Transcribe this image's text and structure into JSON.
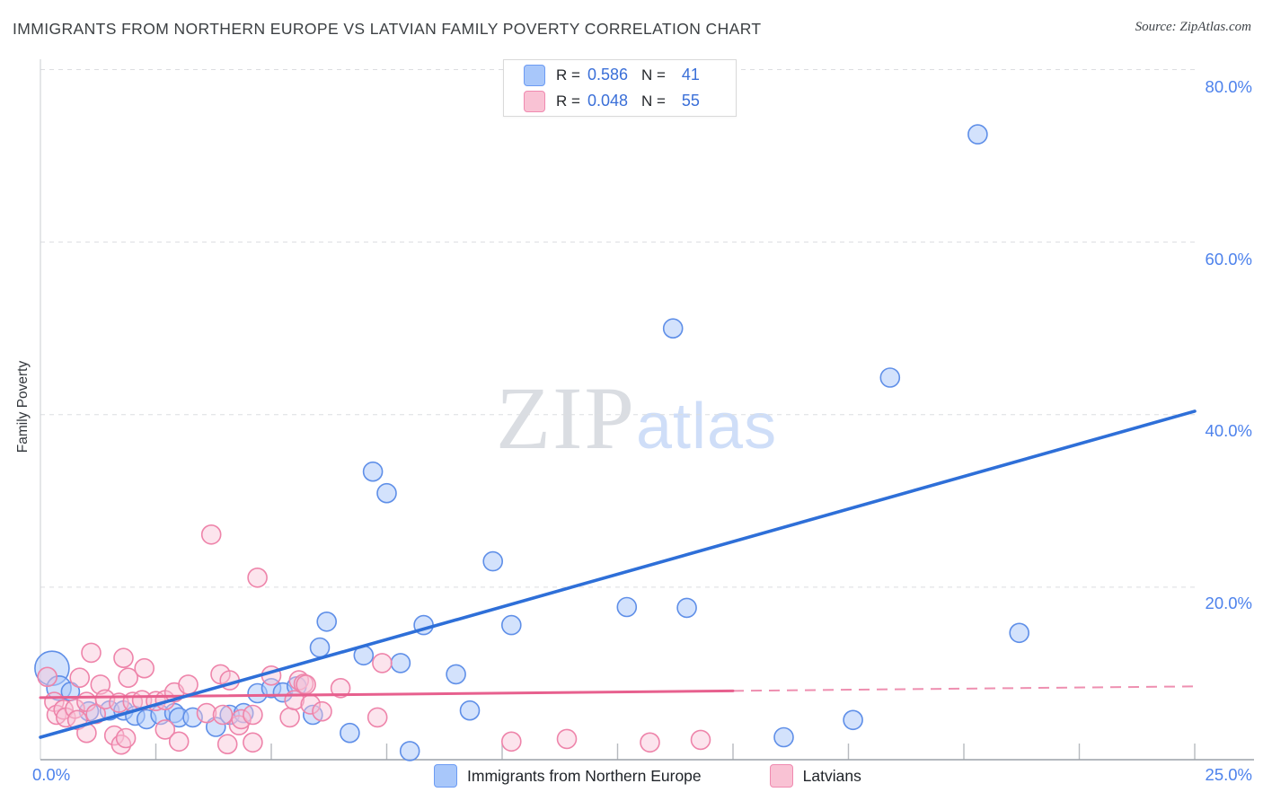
{
  "header": {
    "title": "IMMIGRANTS FROM NORTHERN EUROPE VS LATVIAN FAMILY POVERTY CORRELATION CHART",
    "source": "Source: ZipAtlas.com"
  },
  "watermark": {
    "zip": "ZIP",
    "atlas": "atlas"
  },
  "axes": {
    "y_axis_title": "Family Poverty",
    "y_labels": [
      "80.0%",
      "60.0%",
      "40.0%",
      "20.0%"
    ],
    "x_labels": [
      "0.0%",
      "25.0%"
    ]
  },
  "legend_box": {
    "rows": [
      {
        "r_label": "R =",
        "r_value": "0.586",
        "n_label": "N =",
        "n_value": "41"
      },
      {
        "r_label": "R =",
        "r_value": "0.048",
        "n_label": "N =",
        "n_value": "55"
      }
    ]
  },
  "bottom_legend": {
    "items": [
      {
        "label": "Immigrants from Northern Europe",
        "color": "#a8c7fa"
      },
      {
        "label": "Latvians",
        "color": "#f9c2d4"
      }
    ]
  },
  "colors": {
    "blue_fill": "#aecbfa",
    "blue_stroke": "#5f8fe8",
    "blue_trend": "#2e6fd8",
    "pink_fill": "#f9c4d6",
    "pink_stroke": "#ee84aa",
    "pink_trend": "#e7608e",
    "gridline": "#dcdde0",
    "axis_line": "#9ba1a8",
    "tick": "#b7babf",
    "plot_border": "#d3d5d8",
    "label_blue": "#4d82ec"
  },
  "chart_data": {
    "type": "scatter",
    "title": "Immigrants from Northern Europe vs Latvian Family Poverty",
    "xlabel": "Immigrants from Northern Europe (%)",
    "ylabel": "Family Poverty (%)",
    "xlim": [
      0,
      25
    ],
    "ylim": [
      0,
      81.2
    ],
    "y_gridlines": [
      20,
      40,
      60,
      80
    ],
    "x_minor_tick_step": 2.5,
    "grid": "dashed-horizontal",
    "legend_position": "bottom",
    "series": [
      {
        "name": "Immigrants from Northern Europe",
        "R": 0.586,
        "N": 41,
        "points": [
          [
            0.25,
            10.6,
            19
          ],
          [
            0.4,
            8.3,
            13.5
          ],
          [
            0.65,
            7.9,
            10
          ],
          [
            1.05,
            5.6
          ],
          [
            1.5,
            5.7
          ],
          [
            1.8,
            5.7
          ],
          [
            2.05,
            5.1
          ],
          [
            2.3,
            4.7
          ],
          [
            2.6,
            5.2
          ],
          [
            2.9,
            5.4
          ],
          [
            3.0,
            4.9
          ],
          [
            3.3,
            4.9
          ],
          [
            3.8,
            3.8
          ],
          [
            4.1,
            5.2
          ],
          [
            4.4,
            5.4
          ],
          [
            4.7,
            7.7
          ],
          [
            5.0,
            8.3
          ],
          [
            5.25,
            7.8
          ],
          [
            5.55,
            8.5
          ],
          [
            5.9,
            5.2
          ],
          [
            6.05,
            13.0
          ],
          [
            6.2,
            16.0
          ],
          [
            6.7,
            3.1
          ],
          [
            7.0,
            12.1
          ],
          [
            7.2,
            33.4
          ],
          [
            7.5,
            30.9
          ],
          [
            7.8,
            11.2
          ],
          [
            8.0,
            1.0
          ],
          [
            8.3,
            15.6
          ],
          [
            9.0,
            9.9
          ],
          [
            9.3,
            5.7
          ],
          [
            9.8,
            23.0
          ],
          [
            10.2,
            15.6
          ],
          [
            12.7,
            17.7
          ],
          [
            13.7,
            50.0
          ],
          [
            14.0,
            17.6
          ],
          [
            16.1,
            2.6
          ],
          [
            17.6,
            4.6
          ],
          [
            18.4,
            44.3
          ],
          [
            20.3,
            72.5
          ],
          [
            21.2,
            14.7
          ]
        ],
        "trend_line": {
          "x": [
            0,
            25
          ],
          "y": [
            2.6,
            40.4
          ],
          "solid_until_x": 25
        }
      },
      {
        "name": "Latvians",
        "R": 0.048,
        "N": 55,
        "points": [
          [
            0.15,
            9.6
          ],
          [
            0.3,
            6.7
          ],
          [
            0.35,
            5.2
          ],
          [
            0.5,
            5.8
          ],
          [
            0.55,
            4.9
          ],
          [
            0.75,
            5.9
          ],
          [
            0.8,
            4.6
          ],
          [
            0.85,
            9.5
          ],
          [
            1.0,
            6.7
          ],
          [
            1.0,
            3.1
          ],
          [
            1.1,
            12.4
          ],
          [
            1.2,
            5.3
          ],
          [
            1.3,
            8.7
          ],
          [
            1.4,
            7.0
          ],
          [
            1.6,
            2.8
          ],
          [
            1.7,
            6.6
          ],
          [
            1.75,
            1.75
          ],
          [
            1.8,
            11.8
          ],
          [
            1.85,
            2.5
          ],
          [
            1.9,
            9.5
          ],
          [
            2.0,
            6.7
          ],
          [
            2.2,
            6.9
          ],
          [
            2.25,
            10.6
          ],
          [
            2.5,
            6.8
          ],
          [
            2.7,
            6.9
          ],
          [
            2.7,
            3.5
          ],
          [
            2.9,
            7.8
          ],
          [
            3.0,
            2.1
          ],
          [
            3.2,
            8.7
          ],
          [
            3.6,
            5.4
          ],
          [
            3.7,
            26.1
          ],
          [
            3.9,
            9.9
          ],
          [
            3.95,
            5.2
          ],
          [
            4.05,
            1.8
          ],
          [
            4.1,
            9.2
          ],
          [
            4.3,
            4.0
          ],
          [
            4.35,
            4.7
          ],
          [
            4.6,
            5.2
          ],
          [
            4.6,
            2.0
          ],
          [
            4.7,
            21.1
          ],
          [
            5.0,
            9.75
          ],
          [
            5.4,
            4.9
          ],
          [
            5.5,
            6.9
          ],
          [
            5.6,
            9.2
          ],
          [
            5.7,
            8.8
          ],
          [
            5.75,
            8.7
          ],
          [
            5.85,
            6.4
          ],
          [
            6.1,
            5.6
          ],
          [
            6.5,
            8.3
          ],
          [
            7.3,
            4.9
          ],
          [
            7.4,
            11.2
          ],
          [
            10.2,
            2.1
          ],
          [
            11.4,
            2.4
          ],
          [
            13.2,
            2.0
          ],
          [
            14.3,
            2.3
          ]
        ],
        "trend_line": {
          "x": [
            0,
            25
          ],
          "y": [
            7.2,
            8.5
          ],
          "solid_until_x": 15
        }
      }
    ]
  }
}
